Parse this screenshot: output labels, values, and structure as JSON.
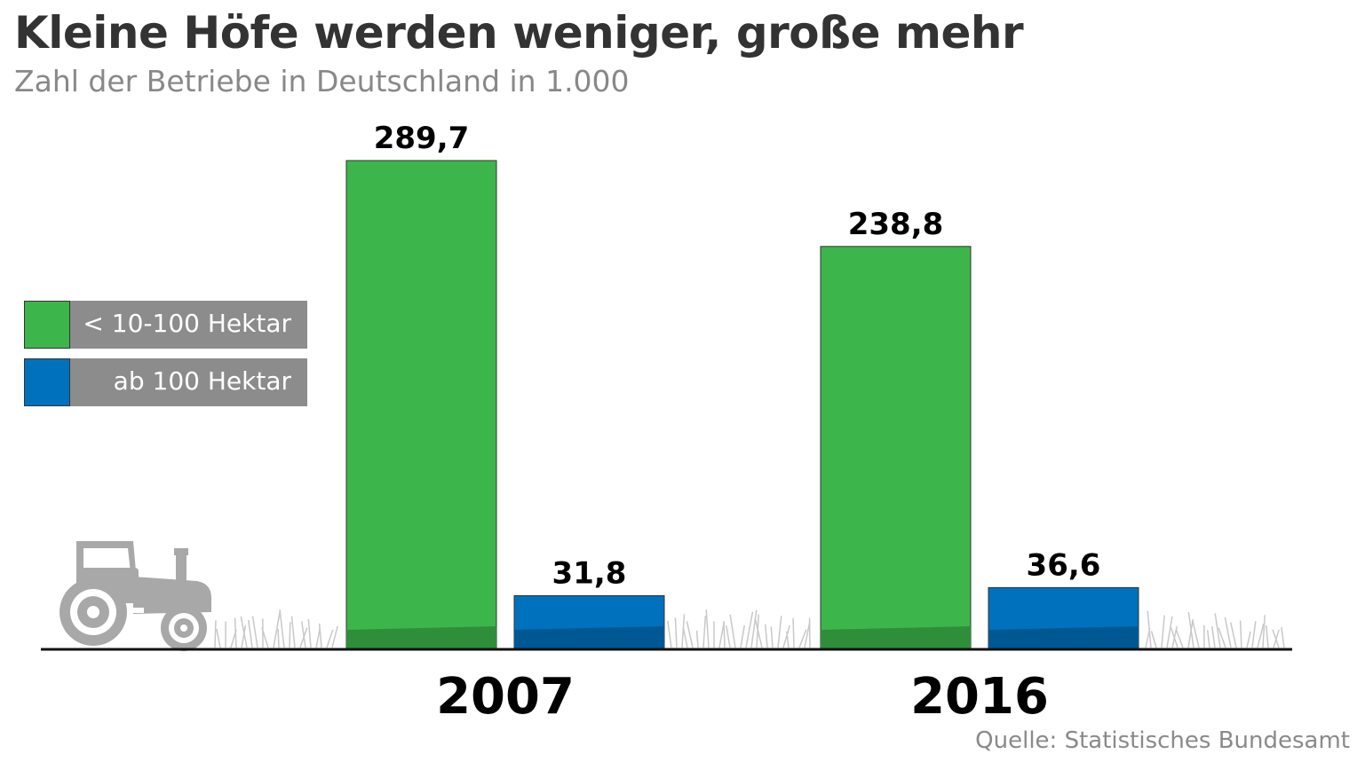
{
  "chart_data": {
    "type": "bar",
    "title": "Kleine Höfe werden weniger, große mehr",
    "subtitle": "Zahl der Betriebe in Deutschland in 1.000",
    "categories": [
      "2007",
      "2016"
    ],
    "series": [
      {
        "name": "< 10-100 Hektar",
        "values": [
          289.7,
          238.8
        ],
        "labels": [
          "289,7",
          "238,8"
        ],
        "color": "#3cb64a"
      },
      {
        "name": "ab 100 Hektar",
        "values": [
          31.8,
          36.6
        ],
        "labels": [
          "31,8",
          "36,6"
        ],
        "color": "#0071bd"
      }
    ],
    "ylim": [
      0,
      300
    ],
    "grid": false,
    "legend": "left",
    "source": "Quelle: Statistisches Bundesamt"
  },
  "colors": {
    "ground": "#111111",
    "grass": "#c8c8c8",
    "tractor": "#a8a8a8",
    "legend_box": "#8c8c8c"
  },
  "icons": [
    "tractor-icon",
    "grass-decoration"
  ]
}
